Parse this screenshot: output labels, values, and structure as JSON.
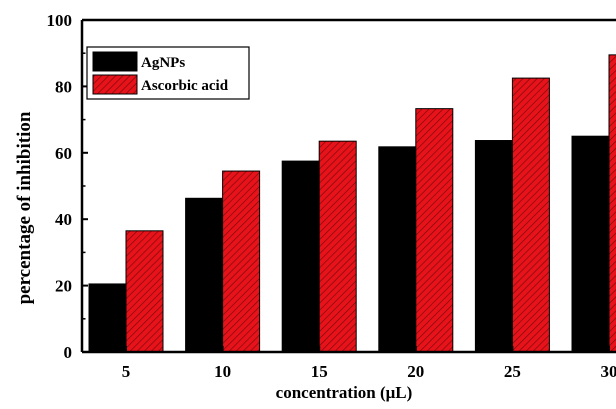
{
  "chart_data": {
    "type": "bar",
    "title": "",
    "xlabel": "concentration (μL)",
    "ylabel": "percentage of inhibition",
    "categories": [
      "5",
      "10",
      "15",
      "20",
      "25",
      "30"
    ],
    "series": [
      {
        "name": "AgNPs",
        "values": [
          20.5,
          46.3,
          57.5,
          61.8,
          63.7,
          65.0
        ],
        "color": "#000000"
      },
      {
        "name": "Ascorbic acid",
        "values": [
          36.5,
          54.5,
          63.5,
          73.3,
          82.5,
          89.5
        ],
        "color": "#e8131a"
      }
    ],
    "ylim": [
      0,
      100
    ],
    "yticks": [
      "0",
      "20",
      "40",
      "60",
      "80",
      "100"
    ],
    "grid": false,
    "legend_position": "top-left",
    "hatch_series": "Ascorbic acid"
  }
}
